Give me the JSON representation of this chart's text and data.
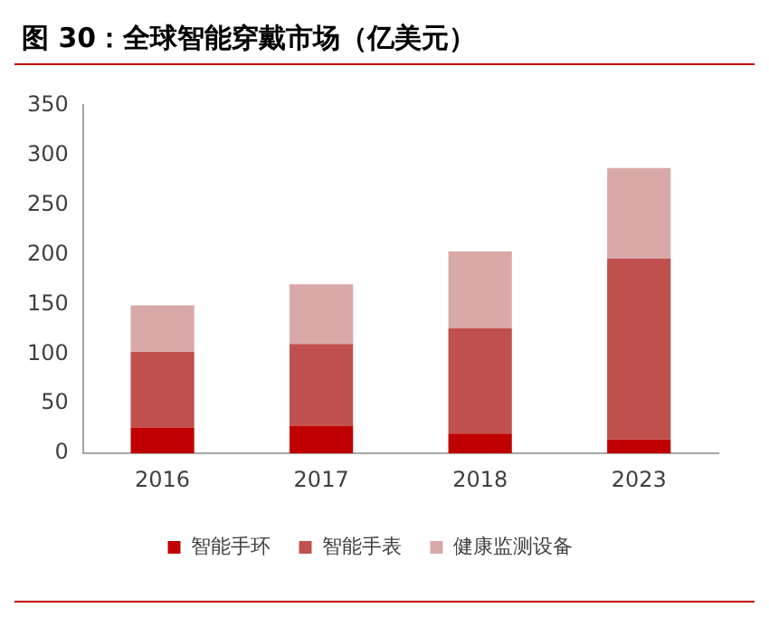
{
  "chart_data": {
    "type": "bar",
    "title": "图 30：全球智能穿戴市场（亿美元）",
    "categories": [
      "2016",
      "2017",
      "2018",
      "2023"
    ],
    "stacked": true,
    "series": [
      {
        "name": "智能手环",
        "color": "#c00000",
        "values": [
          26,
          28,
          20,
          14
        ]
      },
      {
        "name": "智能手表",
        "color": "#c0504d",
        "values": [
          76,
          82,
          106,
          182
        ]
      },
      {
        "name": "健康监测设备",
        "color": "#d9a9a9",
        "values": [
          47,
          60,
          77,
          91
        ]
      }
    ],
    "ylim": [
      0,
      350
    ],
    "yticks": [
      0,
      50,
      100,
      150,
      200,
      250,
      300,
      350
    ],
    "grid": false,
    "legend": "bottom"
  }
}
